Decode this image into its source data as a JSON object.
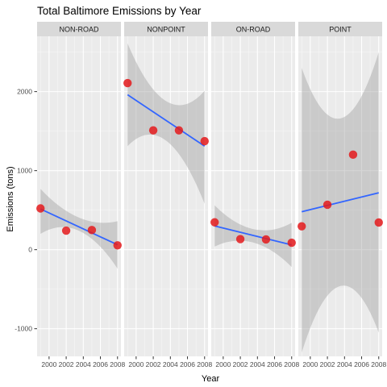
{
  "chart_data": {
    "type": "scatter",
    "title": "Total Baltimore Emissions by Year",
    "xlabel": "Year",
    "ylabel": "Emissions (tons)",
    "xlim": [
      1998.6,
      2008.4
    ],
    "ylim": [
      -1350,
      2700
    ],
    "x_ticks": [
      2000,
      2002,
      2004,
      2006,
      2008
    ],
    "y_ticks": [
      -1000,
      0,
      1000,
      2000
    ],
    "grid": true,
    "point_color": "#e41a1c",
    "line_color": "#3366ff",
    "ribbon_color": "#999999",
    "panel_bg": "#ebebeb",
    "strip_bg": "#d9d9d9",
    "facets": [
      {
        "name": "NON-ROAD",
        "x": [
          1999,
          2002,
          2005,
          2008
        ],
        "y": [
          522,
          241,
          248,
          55
        ],
        "fit": [
          [
            1999,
            515
          ],
          [
            2008,
            62
          ]
        ],
        "ribbon_upper": [
          [
            1999,
            770
          ],
          [
            2003.5,
            405
          ],
          [
            2008,
            360
          ]
        ],
        "ribbon_lower": [
          [
            1999,
            200
          ],
          [
            2003.5,
            240
          ],
          [
            2008,
            -240
          ]
        ]
      },
      {
        "name": "NONPOINT",
        "x": [
          1999,
          2002,
          2005,
          2008
        ],
        "y": [
          2108,
          1510,
          1510,
          1373
        ],
        "fit": [
          [
            1999,
            1960
          ],
          [
            2008,
            1310
          ]
        ],
        "ribbon_upper": [
          [
            1999,
            2610
          ],
          [
            2003.5,
            1880
          ],
          [
            2008,
            2010
          ]
        ],
        "ribbon_lower": [
          [
            1999,
            1310
          ],
          [
            2003.5,
            1380
          ],
          [
            2008,
            580
          ]
        ]
      },
      {
        "name": "ON-ROAD",
        "x": [
          1999,
          2002,
          2005,
          2008
        ],
        "y": [
          346,
          134,
          130,
          88
        ],
        "fit": [
          [
            1999,
            300
          ],
          [
            2008,
            60
          ]
        ],
        "ribbon_upper": [
          [
            1999,
            560
          ],
          [
            2003.5,
            260
          ],
          [
            2008,
            340
          ]
        ],
        "ribbon_lower": [
          [
            1999,
            40
          ],
          [
            2003.5,
            90
          ],
          [
            2008,
            -220
          ]
        ]
      },
      {
        "name": "POINT",
        "x": [
          1999,
          2002,
          2005,
          2008
        ],
        "y": [
          296,
          569,
          1202,
          344
        ],
        "fit": [
          [
            1999,
            480
          ],
          [
            2008,
            720
          ]
        ],
        "ribbon_upper": [
          [
            1999,
            2300
          ],
          [
            2003.5,
            1660
          ],
          [
            2008,
            2500
          ]
        ],
        "ribbon_lower": [
          [
            1999,
            -1300
          ],
          [
            2003.5,
            -460
          ],
          [
            2008,
            -1050
          ]
        ]
      }
    ]
  }
}
